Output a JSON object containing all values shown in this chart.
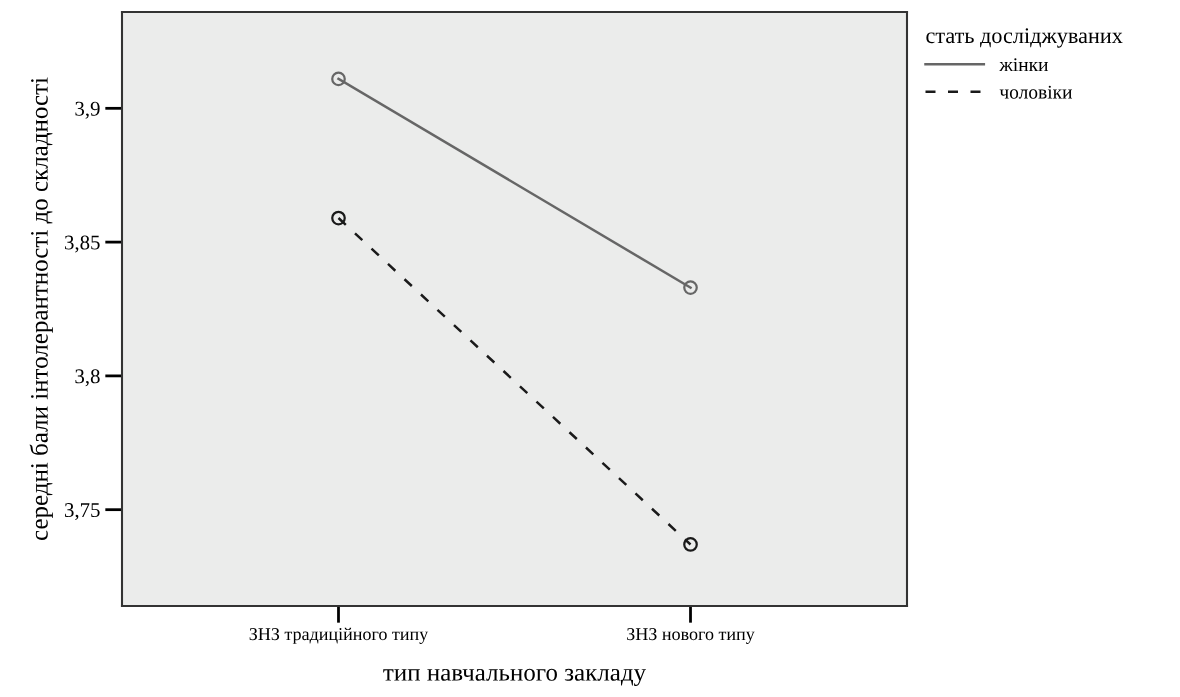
{
  "chart_data": {
    "type": "line",
    "xlabel": "тип навчального закладу",
    "ylabel": "середні бали інтолерантності до складності",
    "legend_title": "стать досліджуваних",
    "categories": [
      "ЗНЗ традиційного типу",
      "ЗНЗ нового типу"
    ],
    "series": [
      {
        "name": "жінки",
        "color": "#666666",
        "values": [
          3.911,
          3.833
        ],
        "line_style": "solid"
      },
      {
        "name": "чоловіки",
        "color": "#1a1a1a",
        "values": [
          3.859,
          3.737
        ],
        "line_style": "dashed"
      }
    ],
    "ylim": [
      3.714,
      3.936
    ],
    "yticks": [
      {
        "value": 3.75,
        "label": "3,75"
      },
      {
        "value": 3.8,
        "label": "3,8"
      },
      {
        "value": 3.85,
        "label": "3,85"
      },
      {
        "value": 3.9,
        "label": "3,9"
      }
    ],
    "marker": "circle",
    "legend": "top right",
    "grid": false
  }
}
